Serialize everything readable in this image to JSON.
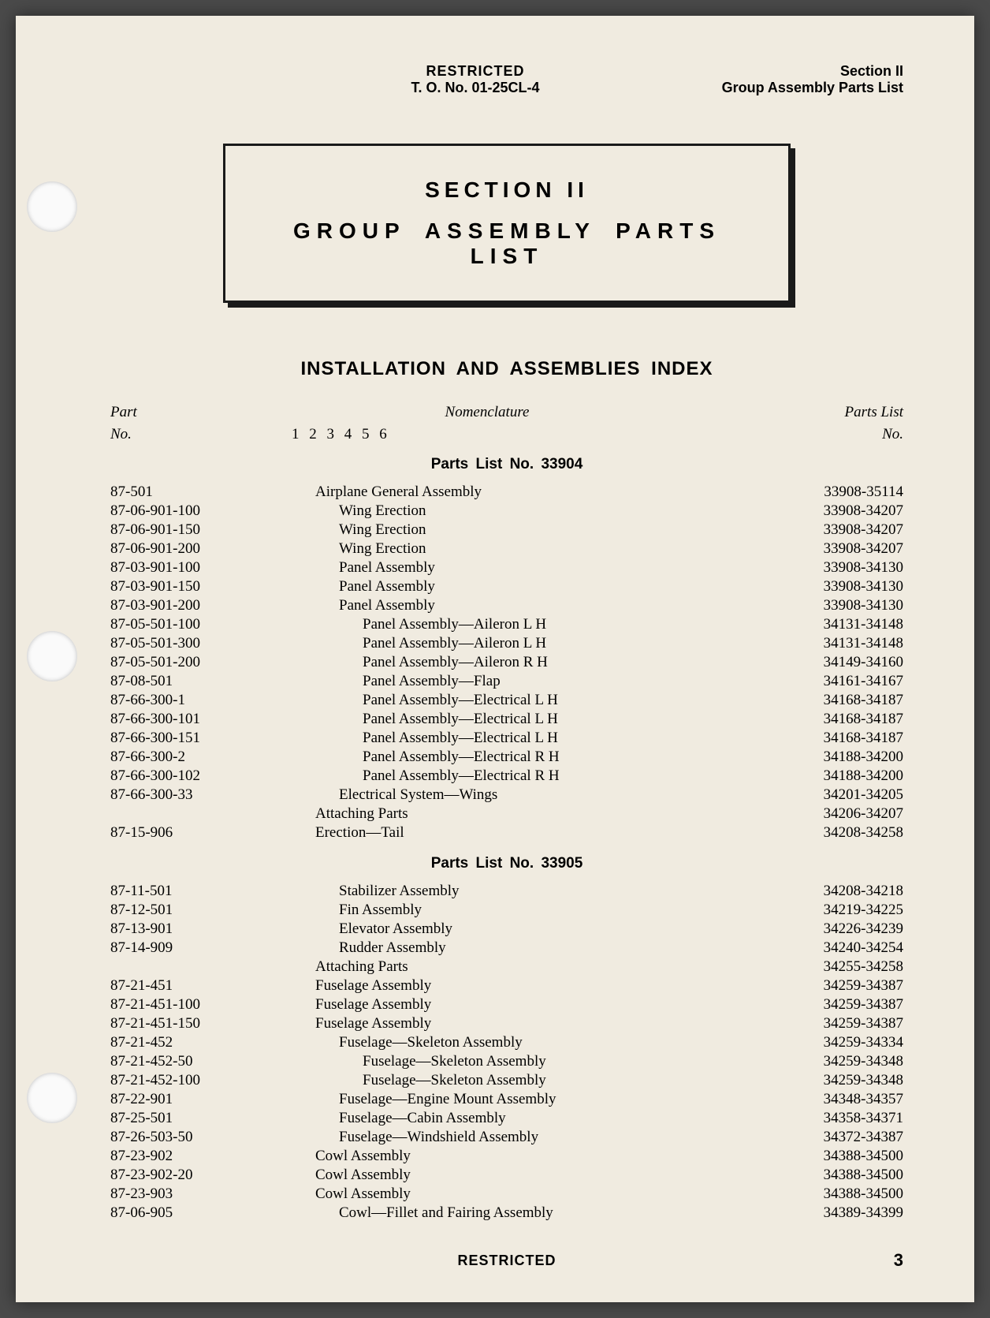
{
  "header": {
    "restricted": "RESTRICTED",
    "to_no": "T. O. No. 01-25CL-4",
    "section": "Section II",
    "subtitle": "Group Assembly Parts List"
  },
  "title_box": {
    "line1": "SECTION II",
    "line2": "GROUP ASSEMBLY PARTS LIST"
  },
  "index_title": "INSTALLATION AND ASSEMBLIES INDEX",
  "col_headers": {
    "part": "Part",
    "part_sub": "No.",
    "nom": "Nomenclature",
    "indent_guide": "1 2 3 4 5 6",
    "pl": "Parts List",
    "pl_sub": "No."
  },
  "groups": [
    {
      "title": "Parts List No. 33904",
      "rows": [
        {
          "part": "87-501",
          "indent": 1,
          "nom": "Airplane General Assembly",
          "pl": "33908-35114"
        },
        {
          "part": "87-06-901-100",
          "indent": 2,
          "nom": "Wing Erection",
          "pl": "33908-34207"
        },
        {
          "part": "87-06-901-150",
          "indent": 2,
          "nom": "Wing Erection",
          "pl": "33908-34207"
        },
        {
          "part": "87-06-901-200",
          "indent": 2,
          "nom": "Wing Erection",
          "pl": "33908-34207"
        },
        {
          "part": "87-03-901-100",
          "indent": 2,
          "nom": "Panel Assembly",
          "pl": "33908-34130"
        },
        {
          "part": "87-03-901-150",
          "indent": 2,
          "nom": "Panel Assembly",
          "pl": "33908-34130"
        },
        {
          "part": "87-03-901-200",
          "indent": 2,
          "nom": "Panel Assembly",
          "pl": "33908-34130"
        },
        {
          "part": "87-05-501-100",
          "indent": 3,
          "nom": "Panel Assembly—Aileron L H",
          "pl": "34131-34148"
        },
        {
          "part": "87-05-501-300",
          "indent": 3,
          "nom": "Panel Assembly—Aileron L H",
          "pl": "34131-34148"
        },
        {
          "part": "87-05-501-200",
          "indent": 3,
          "nom": "Panel Assembly—Aileron R H",
          "pl": "34149-34160"
        },
        {
          "part": "87-08-501",
          "indent": 3,
          "nom": "Panel Assembly—Flap",
          "pl": "34161-34167"
        },
        {
          "part": "87-66-300-1",
          "indent": 3,
          "nom": "Panel Assembly—Electrical L H",
          "pl": "34168-34187"
        },
        {
          "part": "87-66-300-101",
          "indent": 3,
          "nom": "Panel Assembly—Electrical L H",
          "pl": "34168-34187"
        },
        {
          "part": "87-66-300-151",
          "indent": 3,
          "nom": "Panel Assembly—Electrical L H",
          "pl": "34168-34187"
        },
        {
          "part": "87-66-300-2",
          "indent": 3,
          "nom": "Panel Assembly—Electrical R H",
          "pl": "34188-34200"
        },
        {
          "part": "87-66-300-102",
          "indent": 3,
          "nom": "Panel Assembly—Electrical R H",
          "pl": "34188-34200"
        },
        {
          "part": "87-66-300-33",
          "indent": 2,
          "nom": "Electrical System—Wings",
          "pl": "34201-34205"
        },
        {
          "part": "",
          "indent": 1,
          "nom": "Attaching Parts",
          "pl": "34206-34207"
        },
        {
          "part": "87-15-906",
          "indent": 1,
          "nom": "Erection—Tail",
          "pl": "34208-34258"
        }
      ]
    },
    {
      "title": "Parts List No. 33905",
      "rows": [
        {
          "part": "87-11-501",
          "indent": 2,
          "nom": "Stabilizer Assembly",
          "pl": "34208-34218"
        },
        {
          "part": "87-12-501",
          "indent": 2,
          "nom": "Fin Assembly",
          "pl": "34219-34225"
        },
        {
          "part": "87-13-901",
          "indent": 2,
          "nom": "Elevator Assembly",
          "pl": "34226-34239"
        },
        {
          "part": "87-14-909",
          "indent": 2,
          "nom": "Rudder Assembly",
          "pl": "34240-34254"
        },
        {
          "part": "",
          "indent": 1,
          "nom": "Attaching Parts",
          "pl": "34255-34258"
        },
        {
          "part": "87-21-451",
          "indent": 1,
          "nom": "Fuselage Assembly",
          "pl": "34259-34387"
        },
        {
          "part": "87-21-451-100",
          "indent": 1,
          "nom": "Fuselage Assembly",
          "pl": "34259-34387"
        },
        {
          "part": "87-21-451-150",
          "indent": 1,
          "nom": "Fuselage Assembly",
          "pl": "34259-34387"
        },
        {
          "part": "87-21-452",
          "indent": 2,
          "nom": "Fuselage—Skeleton Assembly",
          "pl": "34259-34334"
        },
        {
          "part": "87-21-452-50",
          "indent": 3,
          "nom": "Fuselage—Skeleton Assembly",
          "pl": "34259-34348"
        },
        {
          "part": "87-21-452-100",
          "indent": 3,
          "nom": "Fuselage—Skeleton Assembly",
          "pl": "34259-34348"
        },
        {
          "part": "87-22-901",
          "indent": 2,
          "nom": "Fuselage—Engine Mount Assembly",
          "pl": "34348-34357"
        },
        {
          "part": "87-25-501",
          "indent": 2,
          "nom": "Fuselage—Cabin Assembly",
          "pl": "34358-34371"
        },
        {
          "part": "87-26-503-50",
          "indent": 2,
          "nom": "Fuselage—Windshield Assembly",
          "pl": "34372-34387"
        },
        {
          "part": "87-23-902",
          "indent": 1,
          "nom": "Cowl Assembly",
          "pl": "34388-34500"
        },
        {
          "part": "87-23-902-20",
          "indent": 1,
          "nom": "Cowl Assembly",
          "pl": "34388-34500"
        },
        {
          "part": "87-23-903",
          "indent": 1,
          "nom": "Cowl Assembly",
          "pl": "34388-34500"
        },
        {
          "part": "87-06-905",
          "indent": 2,
          "nom": "Cowl—Fillet and Fairing Assembly",
          "pl": "34389-34399"
        }
      ]
    }
  ],
  "footer": {
    "restricted": "RESTRICTED",
    "page": "3"
  }
}
